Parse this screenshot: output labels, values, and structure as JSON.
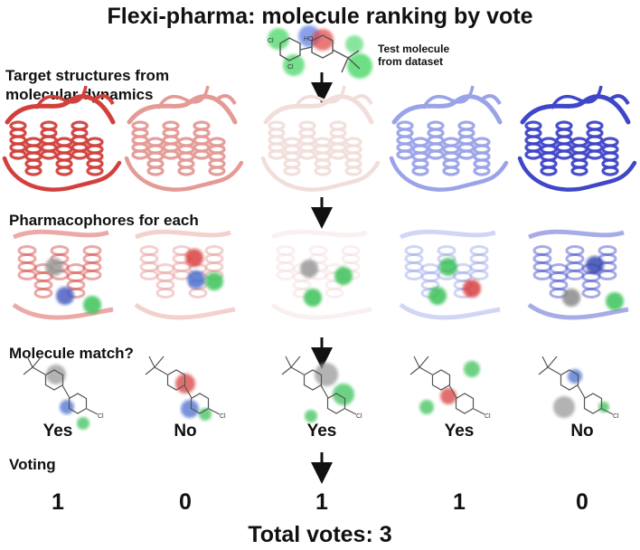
{
  "title": "Flexi-pharma: molecule ranking by vote",
  "test_molecule_label": [
    "Test molecule",
    "from dataset"
  ],
  "sections": {
    "targets": [
      "Target structures from",
      "molecular dynamics"
    ],
    "pharmacophores": "Pharmacophores for each",
    "match": "Molecule match?",
    "voting": "Voting"
  },
  "columns": [
    {
      "protein_color": "#d2403c",
      "answer": "Yes",
      "vote": "1"
    },
    {
      "protein_color": "#e49a95",
      "answer": "No",
      "vote": "0"
    },
    {
      "protein_color": "#f1dedb",
      "answer": "Yes",
      "vote": "1"
    },
    {
      "protein_color": "#9aa3e8",
      "answer": "Yes",
      "vote": "1"
    },
    {
      "protein_color": "#3f46c8",
      "answer": "No",
      "vote": "0"
    }
  ],
  "atom_labels": {
    "cl": "Cl",
    "ho": "HO",
    "oh": "OH"
  },
  "total": "Total votes: 3"
}
